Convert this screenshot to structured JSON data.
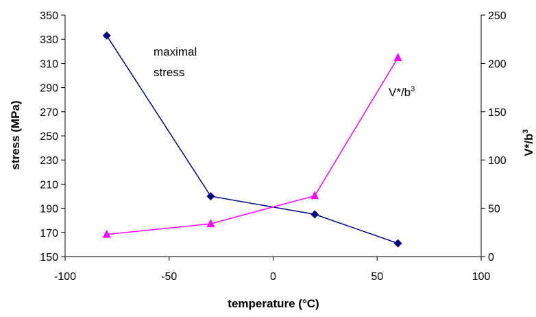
{
  "chart_data": {
    "type": "line",
    "xlabel": "temperature (°C)",
    "ylabel": "stress (MPa)",
    "y2label": "V*/b³",
    "xlim": [
      -100,
      100
    ],
    "ylim": [
      150,
      350
    ],
    "y2lim": [
      0,
      250
    ],
    "x_ticks": [
      -100,
      -50,
      0,
      50,
      100
    ],
    "y_ticks": [
      150,
      170,
      190,
      210,
      230,
      250,
      270,
      290,
      310,
      330,
      350
    ],
    "y2_ticks": [
      0,
      50,
      100,
      150,
      200,
      250
    ],
    "grid": false,
    "series": [
      {
        "axis": "left",
        "marker": "diamond",
        "color": "#000080",
        "x": [
          -80,
          -30,
          20,
          60
        ],
        "values": [
          333,
          200,
          185,
          161
        ]
      },
      {
        "axis": "right",
        "marker": "triangle",
        "color": "#ff00ff",
        "x": [
          -80,
          -30,
          20,
          60
        ],
        "values": [
          23,
          34,
          63,
          206
        ]
      }
    ],
    "annotations": [
      {
        "lines": [
          "maximal",
          "stress"
        ]
      },
      {
        "text": "V*/b",
        "sup": "3"
      }
    ]
  }
}
